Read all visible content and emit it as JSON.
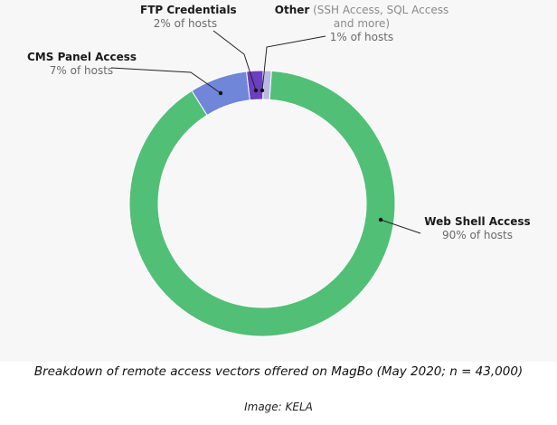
{
  "chart_data": {
    "type": "pie",
    "categories": [
      "Web Shell Access",
      "CMS Panel Access",
      "FTP Credentials",
      "Other"
    ],
    "values": [
      90,
      7,
      2,
      1
    ],
    "colors": [
      "#52bf77",
      "#6f86d9",
      "#6a3fc0",
      "#b9b9e6"
    ],
    "slice_labels": {
      "web_shell": {
        "name": "Web Shell Access",
        "value": "90% of hosts"
      },
      "cms": {
        "name": "CMS Panel Access",
        "value": "7% of hosts"
      },
      "ftp": {
        "name": "FTP Credentials",
        "value": "2% of hosts"
      },
      "other": {
        "name": "Other",
        "extra_line1": "(SSH Access, SQL Access",
        "extra_line2": "and more)",
        "value": "1% of hosts"
      }
    }
  },
  "caption": "Breakdown of remote access vectors offered on MagBo (May 2020; n = 43,000)",
  "credit": "Image: KELA"
}
